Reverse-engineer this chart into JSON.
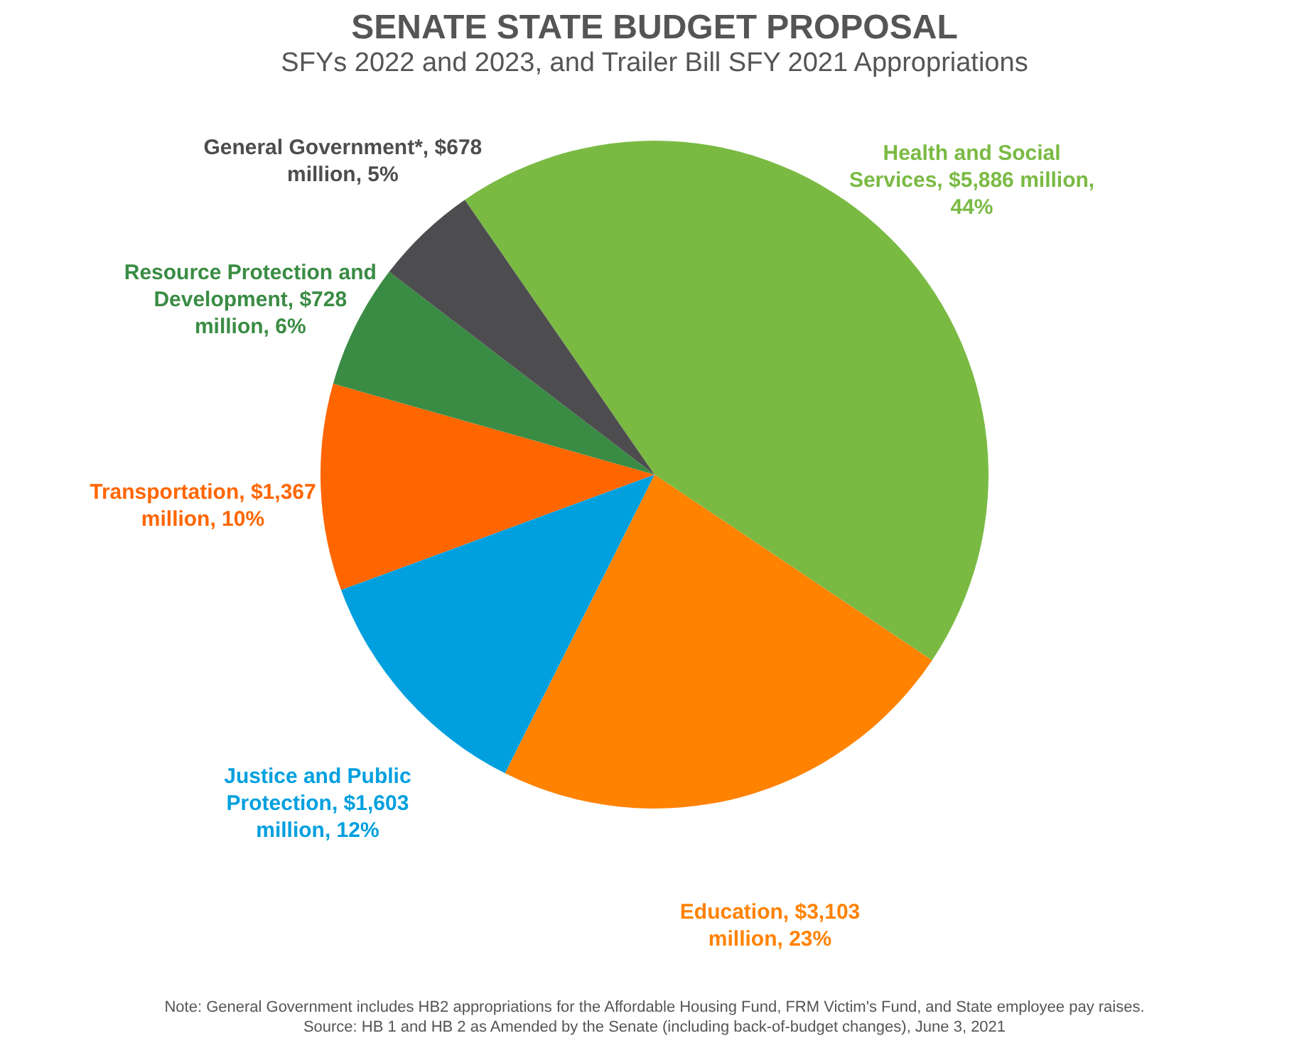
{
  "chart_data": {
    "type": "pie",
    "title": "SENATE STATE BUDGET PROPOSAL",
    "subtitle": "SFYs 2022 and 2023, and Trailer Bill SFY 2021 Appropriations",
    "categories": [
      "Health and Social Services",
      "Education",
      "Justice and Public Protection",
      "Transportation",
      "Resource Protection and Development",
      "General Government*"
    ],
    "values": [
      44,
      23,
      12,
      10,
      6,
      5
    ],
    "value_labels": [
      "$5,886 million, 44%",
      "$3,103 million, 23%",
      "$1,603 million, 12%",
      "$1,367 million, 10%",
      "$728 million, 6%",
      "$678 million, 5%"
    ],
    "colors": [
      "#7aba43",
      "#ff8200",
      "#00a0df",
      "#ff6600",
      "#3a8c44",
      "#4d4d4f"
    ],
    "legend": false,
    "annotations": [
      "Note: General Government includes HB2 appropriations for the Affordable Housing Fund, FRM Victim's Fund, and State employee pay raises.",
      "Source: HB 1 and HB 2 as Amended by the Senate (including back-of-budget changes), June 3, 2021"
    ]
  }
}
